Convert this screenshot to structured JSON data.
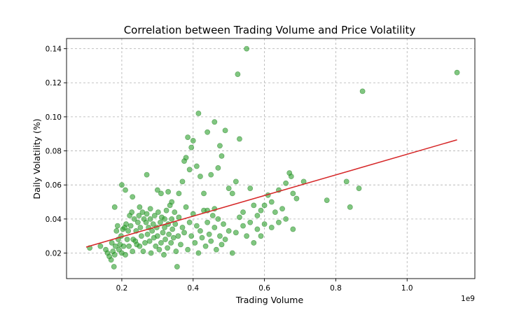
{
  "chart_data": {
    "type": "scatter",
    "title": "Correlation between Trading Volume and Price Volatility",
    "xlabel": "Trading Volume",
    "ylabel": "Daily Volatility (%)",
    "x_offset_label": "1e9",
    "xlim": [
      0.045,
      1.19
    ],
    "ylim": [
      0.005,
      0.146
    ],
    "xticks": [
      0.2,
      0.4,
      0.6,
      0.8,
      1.0
    ],
    "xtick_labels": [
      "0.2",
      "0.4",
      "0.6",
      "0.8",
      "1.0"
    ],
    "yticks": [
      0.02,
      0.04,
      0.06,
      0.08,
      0.1,
      0.12,
      0.14
    ],
    "ytick_labels": [
      "0.02",
      "0.04",
      "0.06",
      "0.08",
      "0.10",
      "0.12",
      "0.14"
    ],
    "grid": true,
    "point_color": "#2ca02c",
    "line_color": "#d62728",
    "trend_line": {
      "x": [
        0.1,
        1.14
      ],
      "y": [
        0.0235,
        0.0865
      ]
    },
    "points": [
      [
        0.11,
        0.023
      ],
      [
        0.14,
        0.024
      ],
      [
        0.155,
        0.022
      ],
      [
        0.16,
        0.02
      ],
      [
        0.165,
        0.018
      ],
      [
        0.17,
        0.016
      ],
      [
        0.172,
        0.026
      ],
      [
        0.175,
        0.021
      ],
      [
        0.178,
        0.012
      ],
      [
        0.18,
        0.019
      ],
      [
        0.182,
        0.024
      ],
      [
        0.185,
        0.033
      ],
      [
        0.188,
        0.036
      ],
      [
        0.19,
        0.028
      ],
      [
        0.192,
        0.022
      ],
      [
        0.195,
        0.025
      ],
      [
        0.198,
        0.03
      ],
      [
        0.2,
        0.02
      ],
      [
        0.203,
        0.034
      ],
      [
        0.205,
        0.024
      ],
      [
        0.208,
        0.035
      ],
      [
        0.21,
        0.019
      ],
      [
        0.212,
        0.037
      ],
      [
        0.215,
        0.028
      ],
      [
        0.218,
        0.033
      ],
      [
        0.22,
        0.024
      ],
      [
        0.222,
        0.042
      ],
      [
        0.225,
        0.036
      ],
      [
        0.228,
        0.044
      ],
      [
        0.23,
        0.021
      ],
      [
        0.232,
        0.028
      ],
      [
        0.235,
        0.04
      ],
      [
        0.238,
        0.027
      ],
      [
        0.24,
        0.033
      ],
      [
        0.242,
        0.025
      ],
      [
        0.245,
        0.038
      ],
      [
        0.248,
        0.042
      ],
      [
        0.25,
        0.024
      ],
      [
        0.252,
        0.035
      ],
      [
        0.255,
        0.03
      ],
      [
        0.258,
        0.044
      ],
      [
        0.26,
        0.021
      ],
      [
        0.262,
        0.04
      ],
      [
        0.265,
        0.026
      ],
      [
        0.268,
        0.038
      ],
      [
        0.27,
        0.043
      ],
      [
        0.272,
        0.031
      ],
      [
        0.275,
        0.035
      ],
      [
        0.278,
        0.027
      ],
      [
        0.28,
        0.046
      ],
      [
        0.282,
        0.02
      ],
      [
        0.285,
        0.033
      ],
      [
        0.288,
        0.037
      ],
      [
        0.29,
        0.029
      ],
      [
        0.292,
        0.042
      ],
      [
        0.295,
        0.024
      ],
      [
        0.298,
        0.035
      ],
      [
        0.3,
        0.03
      ],
      [
        0.302,
        0.044
      ],
      [
        0.305,
        0.022
      ],
      [
        0.308,
        0.038
      ],
      [
        0.31,
        0.026
      ],
      [
        0.312,
        0.041
      ],
      [
        0.315,
        0.032
      ],
      [
        0.318,
        0.019
      ],
      [
        0.32,
        0.035
      ],
      [
        0.322,
        0.028
      ],
      [
        0.325,
        0.045
      ],
      [
        0.328,
        0.023
      ],
      [
        0.33,
        0.037
      ],
      [
        0.332,
        0.031
      ],
      [
        0.335,
        0.048
      ],
      [
        0.338,
        0.026
      ],
      [
        0.34,
        0.04
      ],
      [
        0.342,
        0.034
      ],
      [
        0.345,
        0.029
      ],
      [
        0.348,
        0.044
      ],
      [
        0.35,
        0.037
      ],
      [
        0.352,
        0.021
      ],
      [
        0.355,
        0.012
      ],
      [
        0.358,
        0.03
      ],
      [
        0.36,
        0.041
      ],
      [
        0.365,
        0.025
      ],
      [
        0.37,
        0.035
      ],
      [
        0.375,
        0.032
      ],
      [
        0.38,
        0.047
      ],
      [
        0.385,
        0.022
      ],
      [
        0.39,
        0.038
      ],
      [
        0.395,
        0.03
      ],
      [
        0.4,
        0.043
      ],
      [
        0.405,
        0.026
      ],
      [
        0.41,
        0.036
      ],
      [
        0.415,
        0.02
      ],
      [
        0.42,
        0.033
      ],
      [
        0.425,
        0.029
      ],
      [
        0.43,
        0.045
      ],
      [
        0.435,
        0.024
      ],
      [
        0.44,
        0.038
      ],
      [
        0.445,
        0.031
      ],
      [
        0.45,
        0.027
      ],
      [
        0.455,
        0.042
      ],
      [
        0.46,
        0.035
      ],
      [
        0.465,
        0.022
      ],
      [
        0.47,
        0.04
      ],
      [
        0.475,
        0.03
      ],
      [
        0.48,
        0.025
      ],
      [
        0.485,
        0.037
      ],
      [
        0.49,
        0.028
      ],
      [
        0.5,
        0.033
      ],
      [
        0.51,
        0.02
      ],
      [
        0.52,
        0.032
      ],
      [
        0.53,
        0.041
      ],
      [
        0.54,
        0.036
      ],
      [
        0.55,
        0.03
      ],
      [
        0.56,
        0.038
      ],
      [
        0.57,
        0.026
      ],
      [
        0.58,
        0.034
      ],
      [
        0.59,
        0.03
      ],
      [
        0.6,
        0.037
      ],
      [
        0.62,
        0.035
      ],
      [
        0.64,
        0.038
      ],
      [
        0.66,
        0.04
      ],
      [
        0.68,
        0.034
      ],
      [
        0.2,
        0.06
      ],
      [
        0.21,
        0.057
      ],
      [
        0.23,
        0.053
      ],
      [
        0.27,
        0.066
      ],
      [
        0.3,
        0.057
      ],
      [
        0.31,
        0.055
      ],
      [
        0.33,
        0.056
      ],
      [
        0.34,
        0.05
      ],
      [
        0.36,
        0.055
      ],
      [
        0.37,
        0.062
      ],
      [
        0.375,
        0.074
      ],
      [
        0.38,
        0.076
      ],
      [
        0.385,
        0.088
      ],
      [
        0.39,
        0.069
      ],
      [
        0.395,
        0.082
      ],
      [
        0.4,
        0.086
      ],
      [
        0.41,
        0.071
      ],
      [
        0.415,
        0.102
      ],
      [
        0.42,
        0.065
      ],
      [
        0.43,
        0.055
      ],
      [
        0.44,
        0.091
      ],
      [
        0.45,
        0.066
      ],
      [
        0.46,
        0.097
      ],
      [
        0.47,
        0.07
      ],
      [
        0.475,
        0.083
      ],
      [
        0.48,
        0.077
      ],
      [
        0.49,
        0.092
      ],
      [
        0.5,
        0.058
      ],
      [
        0.51,
        0.055
      ],
      [
        0.52,
        0.062
      ],
      [
        0.53,
        0.087
      ],
      [
        0.525,
        0.125
      ],
      [
        0.55,
        0.14
      ],
      [
        0.56,
        0.058
      ],
      [
        0.57,
        0.048
      ],
      [
        0.59,
        0.045
      ],
      [
        0.6,
        0.048
      ],
      [
        0.61,
        0.054
      ],
      [
        0.62,
        0.05
      ],
      [
        0.64,
        0.057
      ],
      [
        0.65,
        0.046
      ],
      [
        0.66,
        0.061
      ],
      [
        0.67,
        0.067
      ],
      [
        0.675,
        0.065
      ],
      [
        0.68,
        0.055
      ],
      [
        0.69,
        0.052
      ],
      [
        0.71,
        0.062
      ],
      [
        0.775,
        0.051
      ],
      [
        0.83,
        0.062
      ],
      [
        0.84,
        0.047
      ],
      [
        0.865,
        0.058
      ],
      [
        0.875,
        0.115
      ],
      [
        1.14,
        0.126
      ],
      [
        0.18,
        0.047
      ],
      [
        0.25,
        0.047
      ],
      [
        0.28,
        0.04
      ],
      [
        0.32,
        0.04
      ],
      [
        0.44,
        0.045
      ],
      [
        0.46,
        0.046
      ],
      [
        0.54,
        0.044
      ],
      [
        0.58,
        0.042
      ],
      [
        0.63,
        0.044
      ]
    ]
  }
}
